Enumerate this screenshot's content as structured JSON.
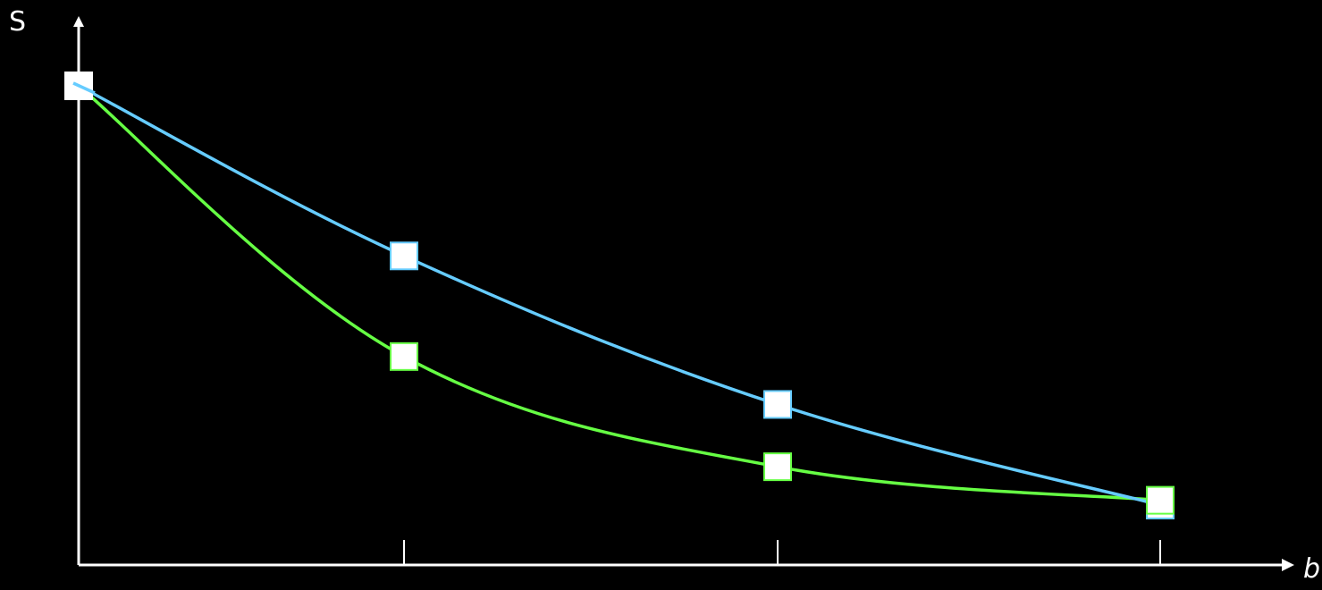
{
  "chart_data": {
    "type": "line",
    "xlabel": "b",
    "ylabel": "S",
    "x": [
      0,
      1,
      2,
      3
    ],
    "xticks": [
      "",
      "",
      ""
    ],
    "ylim": [
      0,
      100
    ],
    "grid": false,
    "legend": "none",
    "series": [
      {
        "color": "#66ff44",
        "values": [
          100,
          43.5,
          20.5,
          13.5
        ]
      },
      {
        "color": "#66ccff",
        "values": [
          100,
          64.5,
          33.5,
          12.5
        ]
      }
    ]
  }
}
